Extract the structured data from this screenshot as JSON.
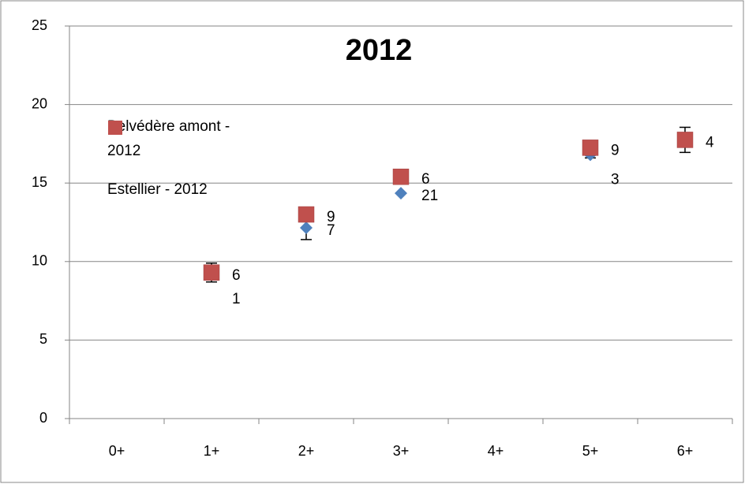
{
  "chart_data": {
    "type": "scatter",
    "title": "2012",
    "categories": [
      "0+",
      "1+",
      "2+",
      "3+",
      "4+",
      "5+",
      "6+"
    ],
    "ylim": [
      0,
      25
    ],
    "yticks": [
      0,
      5,
      10,
      15,
      20,
      25
    ],
    "grid": true,
    "legend": "top-left",
    "series": [
      {
        "name": "Belvédère amont - 2012",
        "color": "#4f81bd",
        "marker": "diamond",
        "label_color": "#1f6fbf",
        "values": [
          null,
          9.2,
          12.15,
          14.35,
          null,
          16.8,
          null
        ],
        "errors": [
          null,
          null,
          0.75,
          null,
          null,
          0.2,
          null
        ],
        "counts": [
          null,
          1,
          7,
          21,
          null,
          3,
          null
        ]
      },
      {
        "name": "Estellier - 2012",
        "color": "#c0504d",
        "marker": "square",
        "label_color": "#ff0000",
        "values": [
          null,
          9.3,
          13.0,
          15.4,
          null,
          17.25,
          17.75
        ],
        "errors": [
          null,
          0.6,
          null,
          null,
          null,
          null,
          0.8
        ],
        "counts": [
          null,
          6,
          9,
          6,
          null,
          9,
          4
        ]
      }
    ]
  }
}
